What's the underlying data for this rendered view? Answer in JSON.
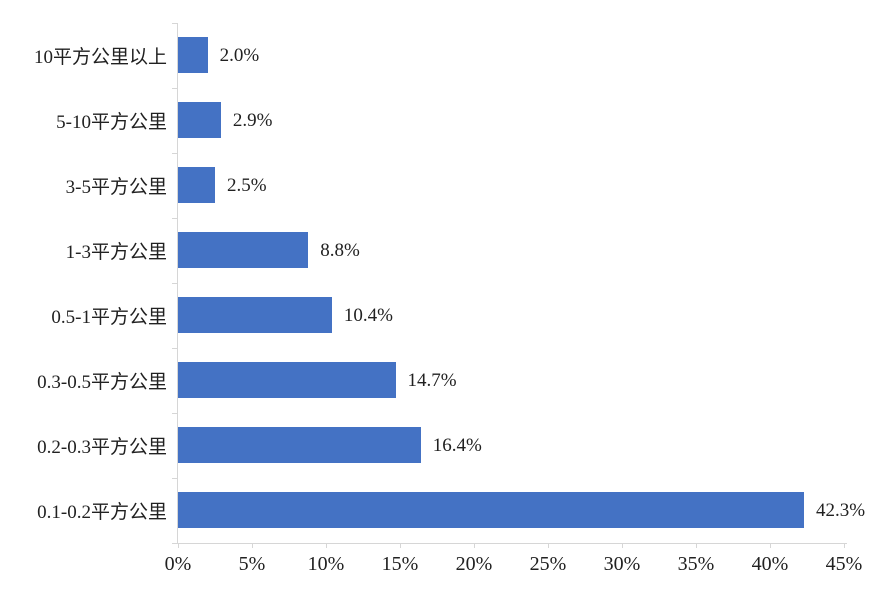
{
  "chart_data": {
    "type": "bar",
    "orientation": "horizontal",
    "title": "",
    "xlabel": "",
    "ylabel": "",
    "categories": [
      "10平方公里以上",
      "5-10平方公里",
      "3-5平方公里",
      "1-3平方公里",
      "0.5-1平方公里",
      "0.3-0.5平方公里",
      "0.2-0.3平方公里",
      "0.1-0.2平方公里"
    ],
    "values": [
      2.0,
      2.9,
      2.5,
      8.8,
      10.4,
      14.7,
      16.4,
      42.3
    ],
    "data_labels": [
      "2.0%",
      "2.9%",
      "2.5%",
      "8.8%",
      "10.4%",
      "14.7%",
      "16.4%",
      "42.3%"
    ],
    "xlim": [
      0,
      45
    ],
    "x_tick_step": 5,
    "x_tick_labels": [
      "0%",
      "5%",
      "10%",
      "15%",
      "20%",
      "25%",
      "30%",
      "35%",
      "40%",
      "45%"
    ],
    "grid": false,
    "legend": false,
    "bar_color": "#4472C4",
    "axis_color": "#D6D6D6",
    "text_color": "#212121"
  }
}
